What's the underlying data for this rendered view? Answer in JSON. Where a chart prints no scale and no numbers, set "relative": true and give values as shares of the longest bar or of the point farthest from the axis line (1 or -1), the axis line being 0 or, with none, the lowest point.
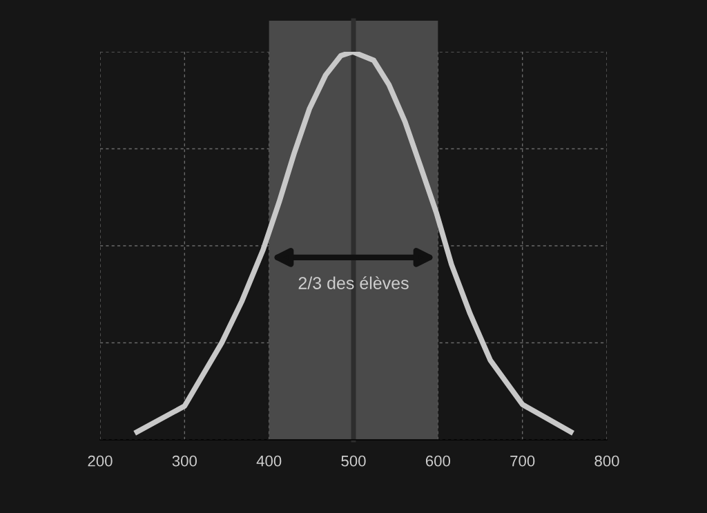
{
  "chart_data": {
    "type": "line",
    "relative": true,
    "x": [
      241,
      300,
      344,
      368,
      393,
      412,
      430,
      448,
      467,
      485,
      499,
      524,
      542,
      561,
      579,
      598,
      616,
      638,
      662,
      700,
      760
    ],
    "series": [
      {
        "color": "#c8c8c8",
        "values": [
          0.017,
          0.087,
          0.25,
          0.358,
          0.49,
          0.613,
          0.74,
          0.854,
          0.94,
          0.99,
          1.0,
          0.978,
          0.915,
          0.82,
          0.707,
          0.586,
          0.452,
          0.325,
          0.205,
          0.091,
          0.017
        ]
      }
    ],
    "xlim": [
      200,
      800
    ],
    "xticks": [
      200,
      300,
      400,
      500,
      600,
      700,
      800
    ],
    "tick_labels": "x",
    "grid": true,
    "line_style": "solid",
    "marker": "none",
    "bands": [
      {
        "axis": "x",
        "from": 400,
        "to": 600,
        "color": "#4a4a4a"
      }
    ],
    "ref_lines": [
      {
        "axis": "x",
        "value": 500,
        "color": "#2e2e2e"
      }
    ],
    "annotations": [
      "2/3 des élèves"
    ]
  }
}
